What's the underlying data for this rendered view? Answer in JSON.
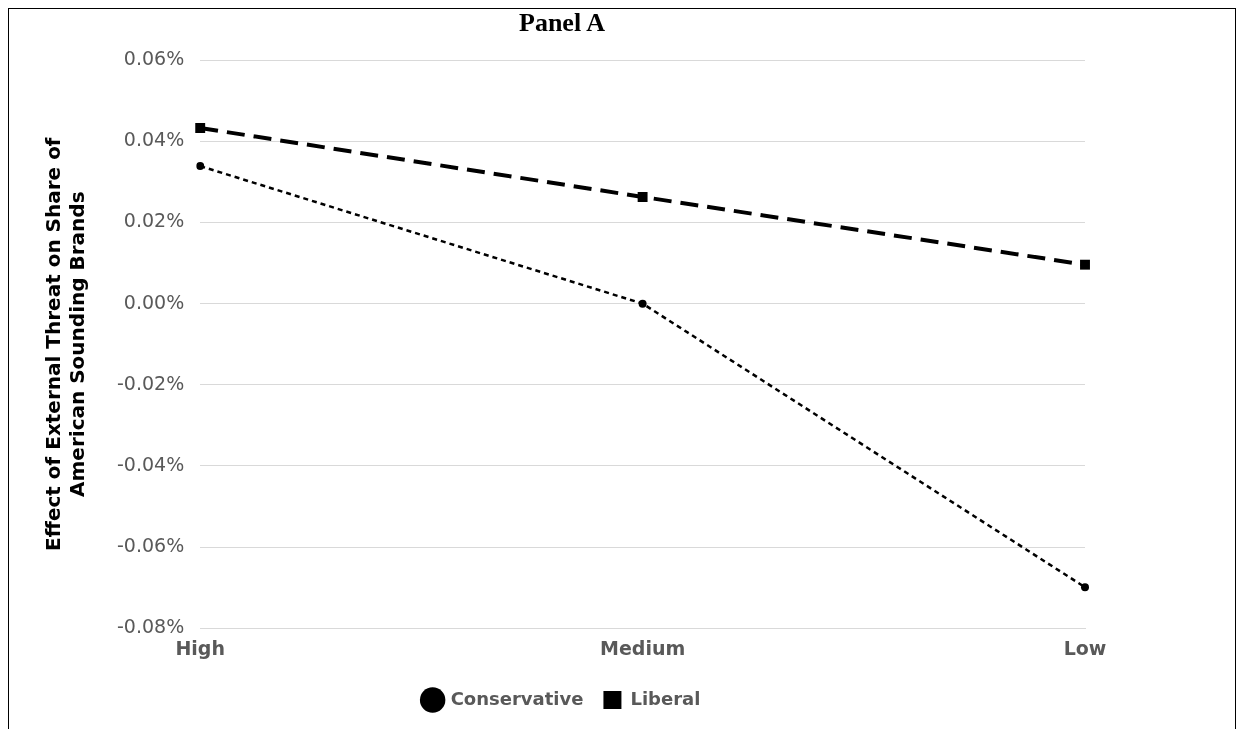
{
  "chart_data": {
    "type": "line",
    "title": "Panel A",
    "ylabel": "Effect of External Threat on Share of American Sounding Brands",
    "categories": [
      "High",
      "Medium",
      "Low"
    ],
    "series": [
      {
        "name": "Conservative",
        "color": "#000000",
        "values": [
          0.0339,
          0.0,
          -0.0699
        ],
        "marker": "circle",
        "line_style": "dotted"
      },
      {
        "name": "Liberal",
        "color": "#000000",
        "values": [
          0.0433,
          0.0263,
          0.0096
        ],
        "marker": "square",
        "line_style": "dashed"
      }
    ],
    "ylim": [
      -0.08,
      0.06
    ],
    "yticks": [
      {
        "value": -0.08,
        "label": "-0.08%"
      },
      {
        "value": -0.06,
        "label": "-0.06%"
      },
      {
        "value": -0.04,
        "label": "-0.04%"
      },
      {
        "value": -0.02,
        "label": "-0.02%"
      },
      {
        "value": 0.0,
        "label": "0.00%"
      },
      {
        "value": 0.02,
        "label": "0.02%"
      },
      {
        "value": 0.04,
        "label": "0.04%"
      },
      {
        "value": 0.06,
        "label": "0.06%"
      }
    ],
    "grid": "y",
    "legend": "bottom"
  }
}
